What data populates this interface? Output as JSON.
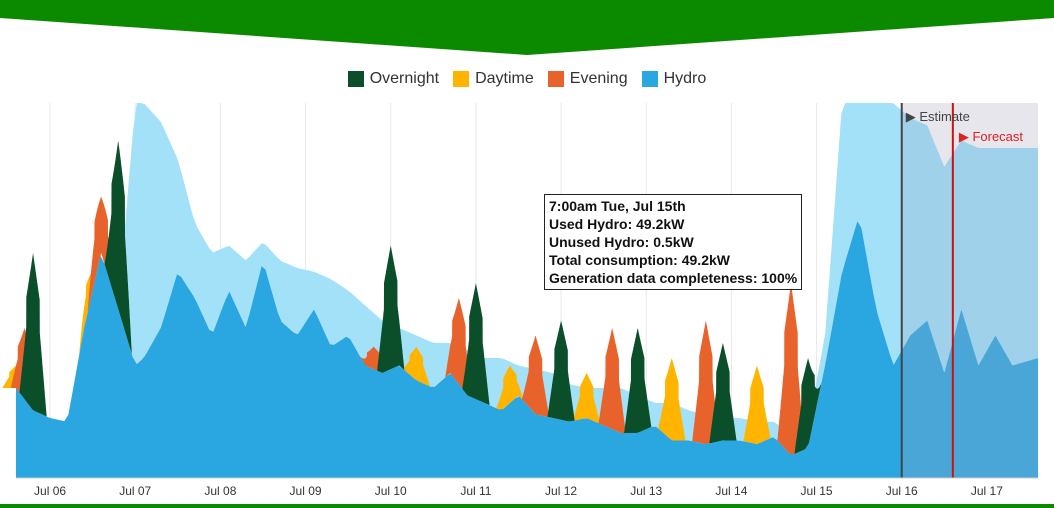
{
  "colors": {
    "overnight": "#0b4f2a",
    "daytime": "#ffb400",
    "evening": "#e8622c",
    "hydro": "#2aa7e0",
    "hydro_unused": "#a3e1f8",
    "forecast_hydro": "#4aa6d6",
    "forecast_unused": "#9fd2ea",
    "estimate_shade": "#e6e6ec",
    "estimate_line": "#444444",
    "forecast_line": "#cc1111",
    "banner": "#0b8a00"
  },
  "legend": [
    {
      "label": "Overnight",
      "color": "#0b4f2a"
    },
    {
      "label": "Daytime",
      "color": "#ffb400"
    },
    {
      "label": "Evening",
      "color": "#e8622c"
    },
    {
      "label": "Hydro",
      "color": "#2aa7e0"
    }
  ],
  "annotations": {
    "estimate": "▶ Estimate",
    "forecast": "▶ Forecast"
  },
  "tooltip": {
    "line1": "7:00am Tue, Jul 15th",
    "line2": "Used Hydro: 49.2kW",
    "line3": "Unused Hydro: 0.5kW",
    "line4": "Total consumption: 49.2kW",
    "line5": "Generation data completeness: 100%"
  },
  "chart_data": {
    "type": "area",
    "x_ticks": [
      "Jul 06",
      "Jul 07",
      "Jul 08",
      "Jul 09",
      "Jul 10",
      "Jul 11",
      "Jul 12",
      "Jul 13",
      "Jul 14",
      "Jul 15",
      "Jul 16",
      "Jul 17"
    ],
    "x_range_days": [
      5.6,
      17.6
    ],
    "y_range_kw": [
      0,
      100
    ],
    "estimate_start_day": 16.0,
    "forecast_start_day": 16.6,
    "series": [
      {
        "name": "Hydro",
        "x_days": [
          5.6,
          5.8,
          6.0,
          6.2,
          6.4,
          6.6,
          6.8,
          7.0,
          7.1,
          7.3,
          7.5,
          7.7,
          7.9,
          8.1,
          8.3,
          8.5,
          8.7,
          8.9,
          9.1,
          9.3,
          9.5,
          9.7,
          9.9,
          10.1,
          10.3,
          10.5,
          10.7,
          10.9,
          11.1,
          11.3,
          11.5,
          11.7,
          11.9,
          12.1,
          12.3,
          12.5,
          12.7,
          12.9,
          13.1,
          13.3,
          13.5,
          13.7,
          13.9,
          14.1,
          14.3,
          14.5,
          14.7,
          14.9,
          15.1,
          15.3,
          15.5,
          15.7,
          15.9,
          16.1,
          16.3,
          16.5,
          16.7,
          16.9,
          17.1,
          17.3,
          17.6
        ],
        "used_kw": [
          24,
          18,
          16,
          15,
          40,
          60,
          45,
          30,
          32,
          40,
          55,
          48,
          38,
          50,
          40,
          58,
          42,
          38,
          45,
          35,
          38,
          30,
          28,
          30,
          26,
          24,
          28,
          22,
          20,
          18,
          22,
          17,
          16,
          15,
          16,
          14,
          12,
          12,
          14,
          10,
          10,
          9,
          10,
          10,
          9,
          11,
          6,
          8,
          30,
          55,
          70,
          45,
          30,
          38,
          42,
          28,
          45,
          30,
          38,
          30,
          32
        ],
        "unused_kw": [
          0,
          0,
          0,
          0,
          0,
          0,
          0,
          70,
          68,
          55,
          30,
          20,
          22,
          12,
          18,
          5,
          16,
          18,
          10,
          18,
          12,
          16,
          14,
          10,
          12,
          12,
          8,
          12,
          12,
          14,
          8,
          12,
          12,
          10,
          8,
          10,
          12,
          10,
          6,
          10,
          8,
          8,
          6,
          6,
          6,
          4,
          6,
          6,
          8,
          45,
          30,
          55,
          70,
          58,
          52,
          55,
          45,
          58,
          50,
          58,
          56
        ]
      },
      {
        "name": "Overnight",
        "peaks_kw": [
          {
            "day": 5.8,
            "kw": 60
          },
          {
            "day": 6.8,
            "kw": 90
          },
          {
            "day": 10.0,
            "kw": 62
          },
          {
            "day": 11.0,
            "kw": 52
          },
          {
            "day": 12.0,
            "kw": 42
          },
          {
            "day": 12.9,
            "kw": 40
          },
          {
            "day": 13.9,
            "kw": 36
          },
          {
            "day": 14.9,
            "kw": 32
          }
        ]
      },
      {
        "name": "Daytime",
        "peaks_kw": [
          {
            "day": 5.6,
            "kw": 30
          },
          {
            "day": 6.5,
            "kw": 55
          },
          {
            "day": 10.3,
            "kw": 35
          },
          {
            "day": 11.4,
            "kw": 30
          },
          {
            "day": 12.3,
            "kw": 28
          },
          {
            "day": 13.3,
            "kw": 32
          },
          {
            "day": 14.3,
            "kw": 30
          }
        ]
      },
      {
        "name": "Evening",
        "peaks_kw": [
          {
            "day": 5.7,
            "kw": 40
          },
          {
            "day": 6.6,
            "kw": 75
          },
          {
            "day": 9.8,
            "kw": 35
          },
          {
            "day": 10.8,
            "kw": 48
          },
          {
            "day": 11.7,
            "kw": 38
          },
          {
            "day": 12.6,
            "kw": 40
          },
          {
            "day": 13.7,
            "kw": 42
          },
          {
            "day": 14.7,
            "kw": 52
          }
        ]
      }
    ]
  }
}
